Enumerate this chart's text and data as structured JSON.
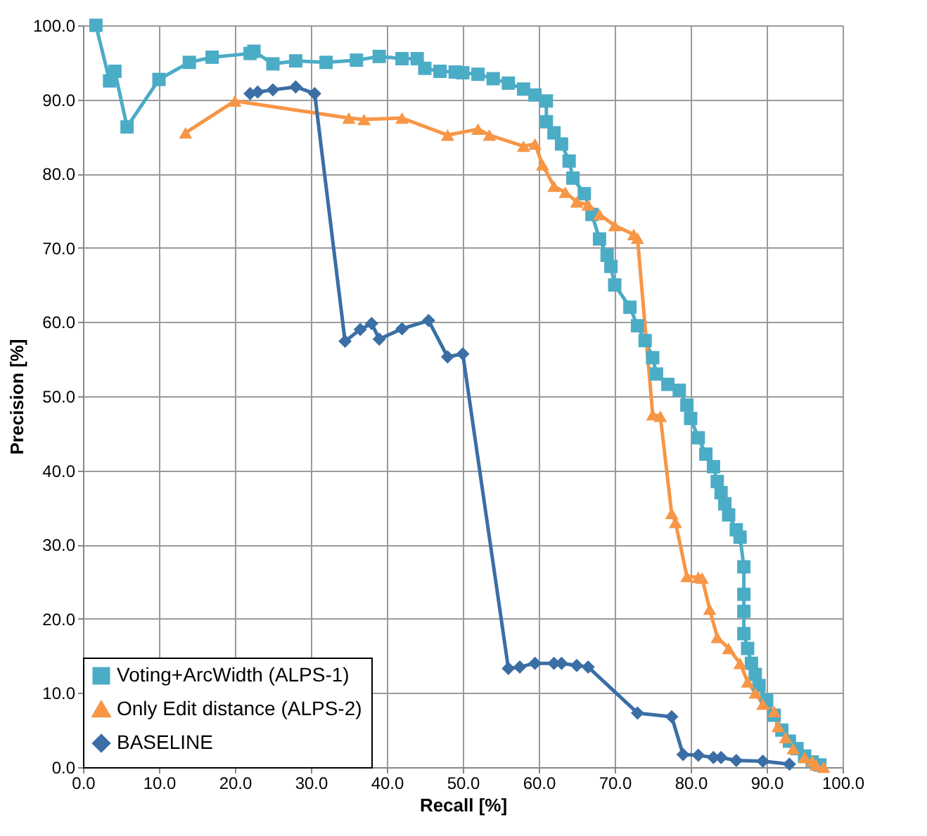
{
  "chart_data": {
    "type": "line",
    "xlabel": "Recall [%]",
    "ylabel": "Precision [%]",
    "xlim": [
      0,
      100
    ],
    "ylim": [
      0,
      100
    ],
    "xticks": [
      {
        "value": 0,
        "label": "0.0"
      },
      {
        "value": 10,
        "label": "10.0"
      },
      {
        "value": 20,
        "label": "20.0"
      },
      {
        "value": 30,
        "label": "30.0"
      },
      {
        "value": 40,
        "label": "40.0"
      },
      {
        "value": 50,
        "label": "50.0"
      },
      {
        "value": 60,
        "label": "60.0"
      },
      {
        "value": 70,
        "label": "70.0"
      },
      {
        "value": 80,
        "label": "80.0"
      },
      {
        "value": 90,
        "label": "90.0"
      },
      {
        "value": 100,
        "label": "100.0"
      }
    ],
    "yticks": [
      {
        "value": 0,
        "label": "0.0"
      },
      {
        "value": 10,
        "label": "10.0"
      },
      {
        "value": 20,
        "label": "20.0"
      },
      {
        "value": 30,
        "label": "30.0"
      },
      {
        "value": 40,
        "label": "40.0"
      },
      {
        "value": 50,
        "label": "50.0"
      },
      {
        "value": 60,
        "label": "60.0"
      },
      {
        "value": 70,
        "label": "70.0"
      },
      {
        "value": 80,
        "label": "80.0"
      },
      {
        "value": 90,
        "label": "90.0"
      },
      {
        "value": 100,
        "label": "100.0"
      }
    ],
    "grid": true,
    "legend": "bottom left",
    "line_style": "solid",
    "series": [
      {
        "name": "Voting+ArcWidth (ALPS-1)",
        "color": "#4bacc6",
        "marker": "square",
        "x": [
          1.7,
          3.5,
          4.2,
          5.8,
          10,
          14,
          17,
          22,
          22.5,
          25,
          28,
          32,
          36,
          39,
          42,
          44,
          45,
          47,
          49,
          50,
          52,
          54,
          56,
          58,
          59.5,
          61,
          61,
          62,
          63,
          64,
          64.5,
          66,
          67,
          68,
          69,
          69.5,
          70,
          72,
          73,
          74,
          75,
          75.5,
          77,
          78.5,
          79.5,
          80,
          81,
          82,
          83,
          83.5,
          84,
          84.5,
          85,
          86,
          86.5,
          87,
          87,
          87,
          87,
          87.5,
          88,
          88.5,
          89,
          90,
          91,
          92,
          93,
          94,
          95,
          96,
          97
        ],
        "values": [
          100,
          92.5,
          93.8,
          86.3,
          92.7,
          95,
          95.7,
          96.2,
          96.5,
          94.8,
          95.2,
          95,
          95.3,
          95.8,
          95.5,
          95.5,
          94.2,
          93.8,
          93.7,
          93.6,
          93.4,
          92.8,
          92.2,
          91.4,
          90.6,
          89.8,
          87,
          85.5,
          84,
          81.7,
          79.4,
          77.3,
          74.5,
          71.2,
          69,
          67.5,
          65,
          62,
          59.5,
          57.5,
          55.2,
          53,
          51.6,
          50.8,
          48.8,
          47,
          44.4,
          42.2,
          40.5,
          38.5,
          37,
          35.5,
          34,
          32,
          31,
          27,
          23.3,
          21,
          18,
          16,
          14,
          12.5,
          11,
          9,
          7,
          5,
          3.5,
          2.5,
          1.5,
          0.7,
          0.3
        ]
      },
      {
        "name": "Only Edit distance (ALPS-2)",
        "color": "#f79646",
        "marker": "triangle",
        "x": [
          13.5,
          20,
          35,
          37,
          42,
          48,
          52,
          53.5,
          58,
          59.5,
          60.5,
          62,
          63.5,
          65,
          66.5,
          68,
          70,
          72.5,
          73,
          75,
          76,
          77.5,
          78,
          79.5,
          81,
          81.5,
          82.5,
          83.5,
          85,
          86.5,
          87.5,
          88.5,
          89.5,
          91,
          91.5,
          92.5,
          93.5,
          95,
          96,
          96.5,
          97.5
        ],
        "values": [
          85.5,
          89.8,
          87.5,
          87.3,
          87.5,
          85.2,
          86,
          85.2,
          83.7,
          84,
          81.2,
          78.3,
          77.5,
          76.2,
          75.8,
          74.5,
          73,
          71.8,
          71.3,
          47.5,
          47.3,
          34.2,
          33,
          25.7,
          25.6,
          25.5,
          21.3,
          17.5,
          16,
          14,
          11.5,
          10,
          8.5,
          7.5,
          5.5,
          4,
          2.5,
          1.3,
          0.8,
          0.3,
          0
        ]
      },
      {
        "name": "BASELINE",
        "color": "#3a6ea5",
        "marker": "diamond",
        "x": [
          22,
          23,
          25,
          28,
          30.5,
          34.5,
          36.5,
          38,
          39,
          42,
          45.5,
          48,
          50,
          56,
          57.5,
          59.5,
          62,
          63,
          65,
          66.5,
          73,
          77.5,
          79,
          81,
          83,
          84,
          86,
          89.5,
          93
        ],
        "values": [
          90.8,
          91,
          91.3,
          91.7,
          90.8,
          57.4,
          59,
          59.8,
          57.7,
          59.1,
          60.2,
          55.3,
          55.7,
          13.3,
          13.5,
          14,
          14,
          14,
          13.7,
          13.5,
          7.3,
          6.8,
          1.7,
          1.6,
          1.3,
          1.3,
          0.9,
          0.8,
          0.4
        ]
      }
    ]
  }
}
